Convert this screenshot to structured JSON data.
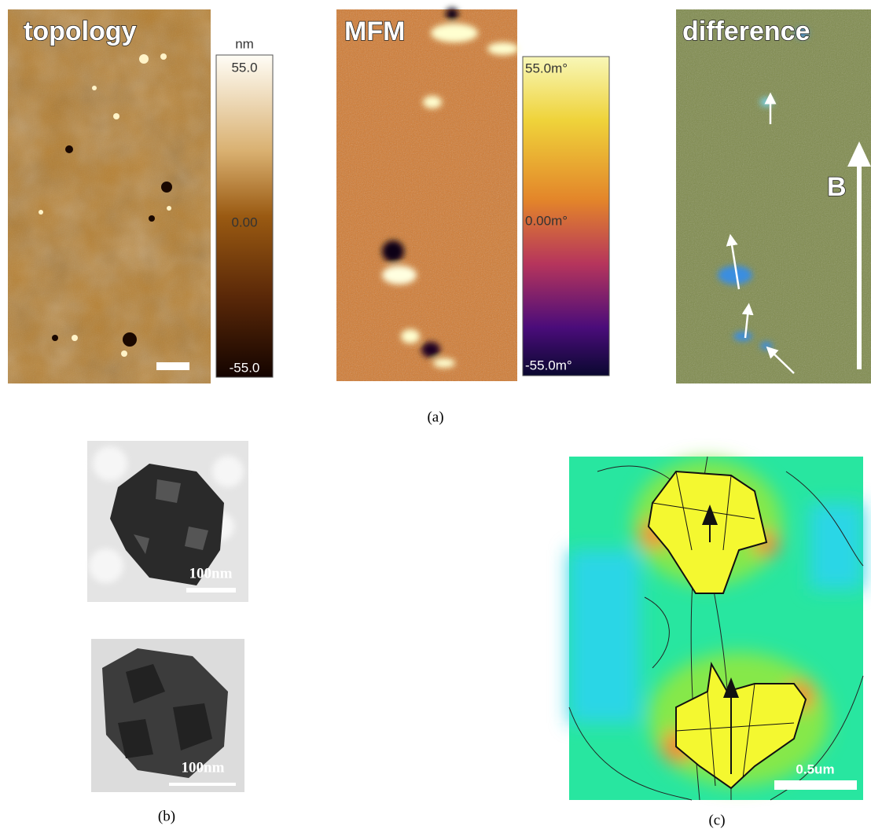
{
  "panels": {
    "a": {
      "label": "(a)",
      "images": [
        {
          "title": "topology",
          "colorbar": {
            "unit": "nm",
            "ticks": [
              "55.0",
              "0.00",
              "-55.0"
            ]
          }
        },
        {
          "title": "MFM",
          "colorbar": {
            "ticks": [
              "55.0m°",
              "0.00m°",
              "-55.0m°"
            ]
          }
        },
        {
          "title": "difference",
          "field_label": "B"
        }
      ]
    },
    "b": {
      "label": "(b)",
      "images": [
        {
          "scale_bar": "100nm"
        },
        {
          "scale_bar": "100nm"
        }
      ]
    },
    "c": {
      "label": "(c)",
      "scale_bar": "0.5um"
    }
  }
}
